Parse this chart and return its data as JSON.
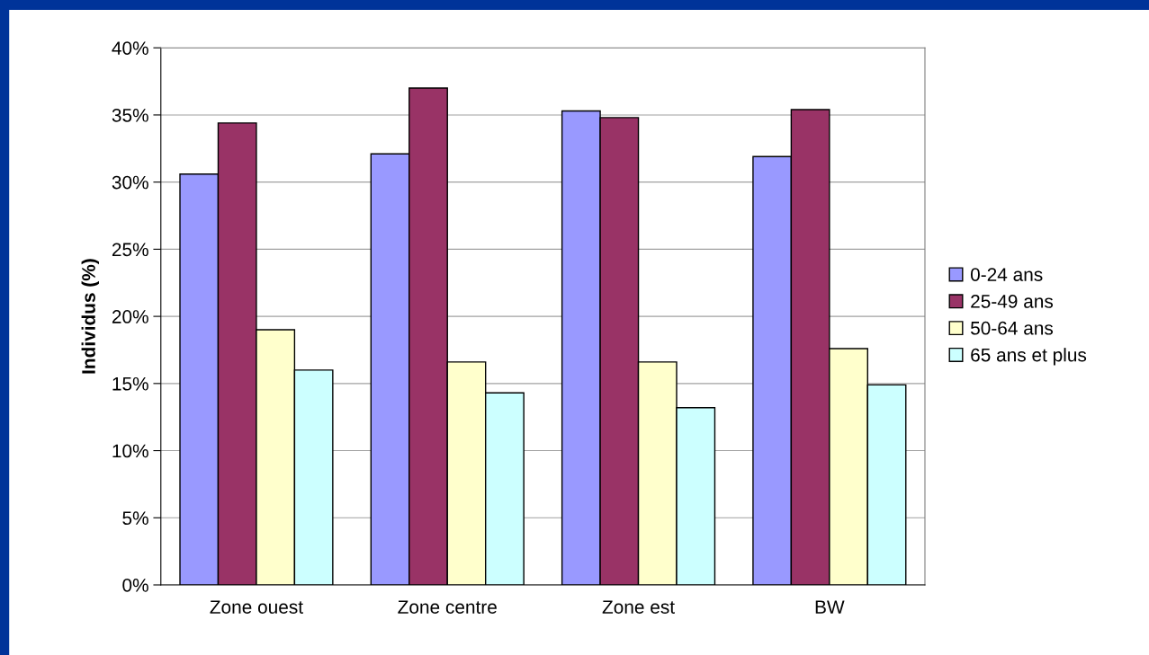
{
  "chart_data": {
    "type": "bar",
    "ylabel": "Individus (%)",
    "categories": [
      "Zone ouest",
      "Zone centre",
      "Zone est",
      "BW"
    ],
    "series": [
      {
        "name": "0-24 ans",
        "color": "#9999ff",
        "values": [
          30.6,
          32.1,
          35.3,
          31.9
        ]
      },
      {
        "name": "25-49 ans",
        "color": "#993366",
        "values": [
          34.4,
          37.0,
          34.8,
          35.4
        ]
      },
      {
        "name": "50-64 ans",
        "color": "#ffffcc",
        "values": [
          19.0,
          16.6,
          16.6,
          17.6
        ]
      },
      {
        "name": "65 ans et plus",
        "color": "#ccffff",
        "values": [
          16.0,
          14.3,
          13.2,
          14.9
        ]
      }
    ],
    "ylim": [
      0,
      40
    ],
    "yticks": [
      {
        "value": 0,
        "label": "0%"
      },
      {
        "value": 5,
        "label": "5%"
      },
      {
        "value": 10,
        "label": "10%"
      },
      {
        "value": 15,
        "label": "15%"
      },
      {
        "value": 20,
        "label": "20%"
      },
      {
        "value": 25,
        "label": "25%"
      },
      {
        "value": 30,
        "label": "30%"
      },
      {
        "value": 35,
        "label": "35%"
      },
      {
        "value": 40,
        "label": "40%"
      }
    ],
    "grid": "y",
    "legend": "right"
  }
}
